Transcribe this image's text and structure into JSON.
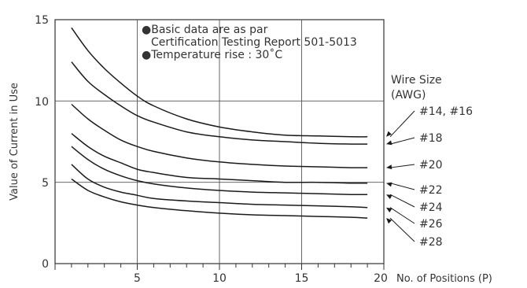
{
  "chart_data": {
    "type": "line",
    "title": "",
    "xlabel": "No. of Positions (P)",
    "ylabel": "Value of Current in Use",
    "xlim": [
      0,
      20
    ],
    "ylim": [
      0,
      15
    ],
    "x_ticks": [
      "5",
      "10",
      "15",
      "20"
    ],
    "y_ticks": [
      "0",
      "5",
      "10",
      "15"
    ],
    "grid": true,
    "notes": [
      "●Basic data are as par",
      "Certification Testing Report 501-5013",
      "●Temperature rise : 30˚C"
    ],
    "legend_title": [
      "Wire Size",
      "(AWG)"
    ],
    "x": [
      1,
      2,
      3,
      4,
      5,
      6,
      8,
      10,
      12,
      14,
      16,
      18,
      19
    ],
    "series": [
      {
        "name": "#14, #16",
        "values": [
          14.5,
          13.1,
          12.0,
          11.1,
          10.3,
          9.7,
          8.9,
          8.4,
          8.1,
          7.9,
          7.85,
          7.8,
          7.8
        ]
      },
      {
        "name": "#18",
        "values": [
          12.4,
          11.2,
          10.4,
          9.7,
          9.1,
          8.7,
          8.1,
          7.8,
          7.6,
          7.5,
          7.4,
          7.35,
          7.35
        ]
      },
      {
        "name": "#20",
        "values": [
          9.8,
          8.9,
          8.2,
          7.6,
          7.2,
          6.9,
          6.5,
          6.25,
          6.1,
          6.0,
          5.95,
          5.9,
          5.9
        ]
      },
      {
        "name": "#22",
        "values": [
          8.0,
          7.2,
          6.6,
          6.2,
          5.8,
          5.6,
          5.3,
          5.2,
          5.1,
          5.0,
          5.0,
          4.95,
          4.95
        ]
      },
      {
        "name": "#24",
        "values": [
          7.2,
          6.4,
          5.8,
          5.4,
          5.1,
          4.9,
          4.65,
          4.5,
          4.4,
          4.35,
          4.3,
          4.25,
          4.25
        ]
      },
      {
        "name": "#26",
        "values": [
          6.1,
          5.2,
          4.7,
          4.4,
          4.2,
          4.0,
          3.85,
          3.75,
          3.65,
          3.6,
          3.55,
          3.5,
          3.45
        ]
      },
      {
        "name": "#28",
        "values": [
          5.2,
          4.5,
          4.1,
          3.8,
          3.6,
          3.45,
          3.25,
          3.1,
          3.0,
          2.95,
          2.9,
          2.85,
          2.8
        ]
      }
    ]
  }
}
